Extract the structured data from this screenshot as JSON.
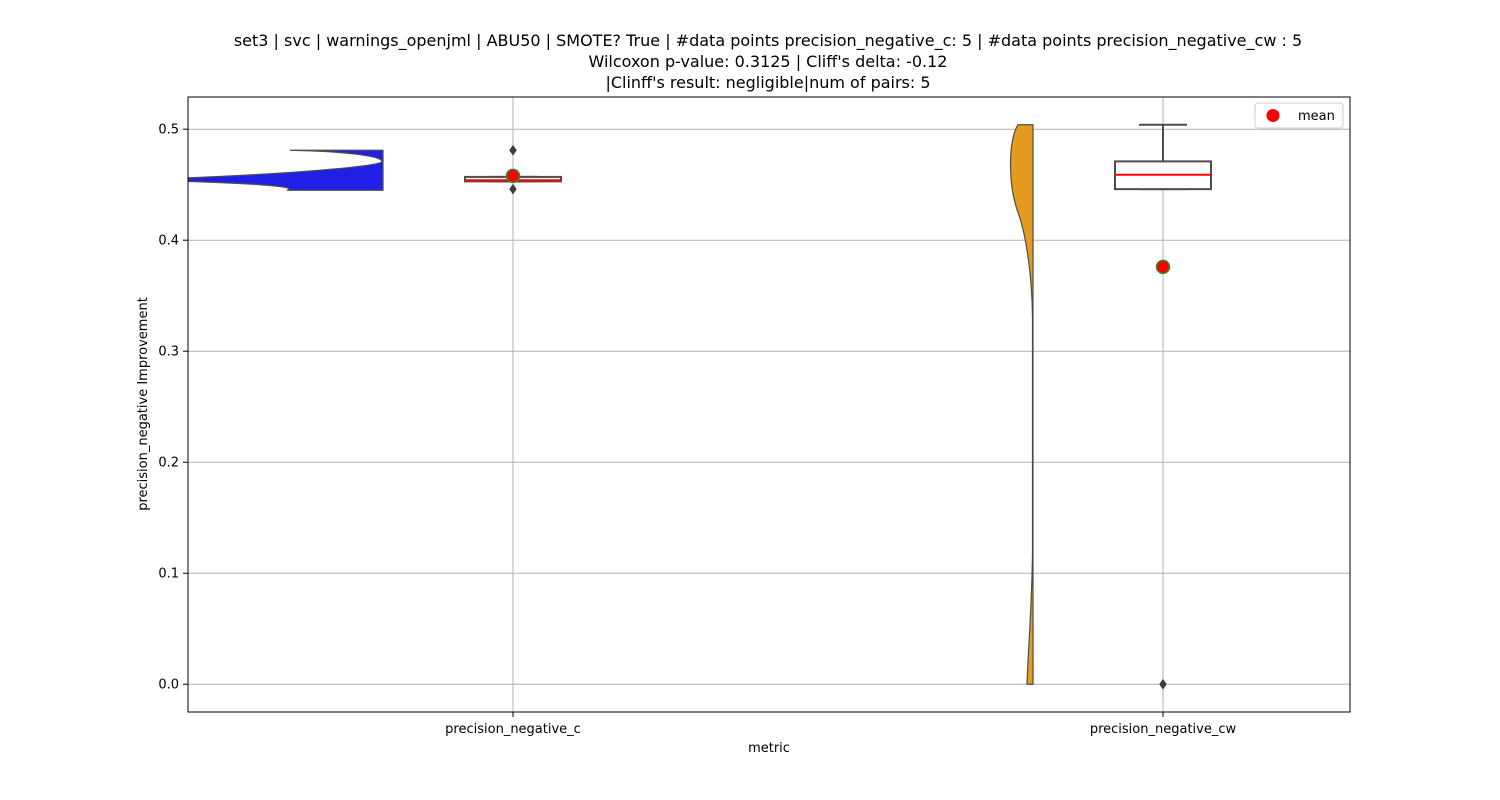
{
  "chart_data": {
    "type": "violin-box",
    "title_lines": [
      "set3 | svc | warnings_openjml | ABU50 | SMOTE? True | #data points precision_negative_c: 5 | #data points precision_negative_cw : 5",
      "Wilcoxon p-value: 0.3125 | Cliff's delta: -0.12",
      "|Clinff's result: negligible|num of pairs: 5"
    ],
    "xlabel": "metric",
    "ylabel": "precision_negative Improvement",
    "categories": [
      "precision_negative_c",
      "precision_negative_cw"
    ],
    "ylim": [
      -0.025,
      0.529
    ],
    "yticks": [
      0.0,
      0.1,
      0.2,
      0.3,
      0.4,
      0.5
    ],
    "ytick_labels": [
      "0.0",
      "0.1",
      "0.2",
      "0.3",
      "0.4",
      "0.5"
    ],
    "grid": true,
    "legend": {
      "position": "top-right",
      "entries": [
        {
          "label": "mean",
          "color": "#ff0000",
          "marker": "circle"
        }
      ]
    },
    "violin_colors": [
      "#1f1fe6",
      "#e59c1e"
    ],
    "series": [
      {
        "category": "precision_negative_c",
        "box": {
          "q1": 0.453,
          "median": 0.454,
          "q3": 0.457,
          "whisker_low": 0.453,
          "whisker_high": 0.457
        },
        "outliers": [
          0.481,
          0.446
        ],
        "mean": 0.458,
        "violin_range": [
          0.445,
          0.481
        ]
      },
      {
        "category": "precision_negative_cw",
        "box": {
          "q1": 0.446,
          "median": 0.459,
          "q3": 0.471,
          "whisker_low": 0.446,
          "whisker_high": 0.504
        },
        "outliers": [
          0.0
        ],
        "mean": 0.376,
        "violin_range": [
          0.0,
          0.504
        ]
      }
    ],
    "colors": {
      "median": "#ff0000",
      "mean_fill": "#ff0000",
      "mean_edge": "#2e8b2e",
      "box_edge": "#4d4d4d",
      "grid": "#b0b0b0"
    }
  }
}
